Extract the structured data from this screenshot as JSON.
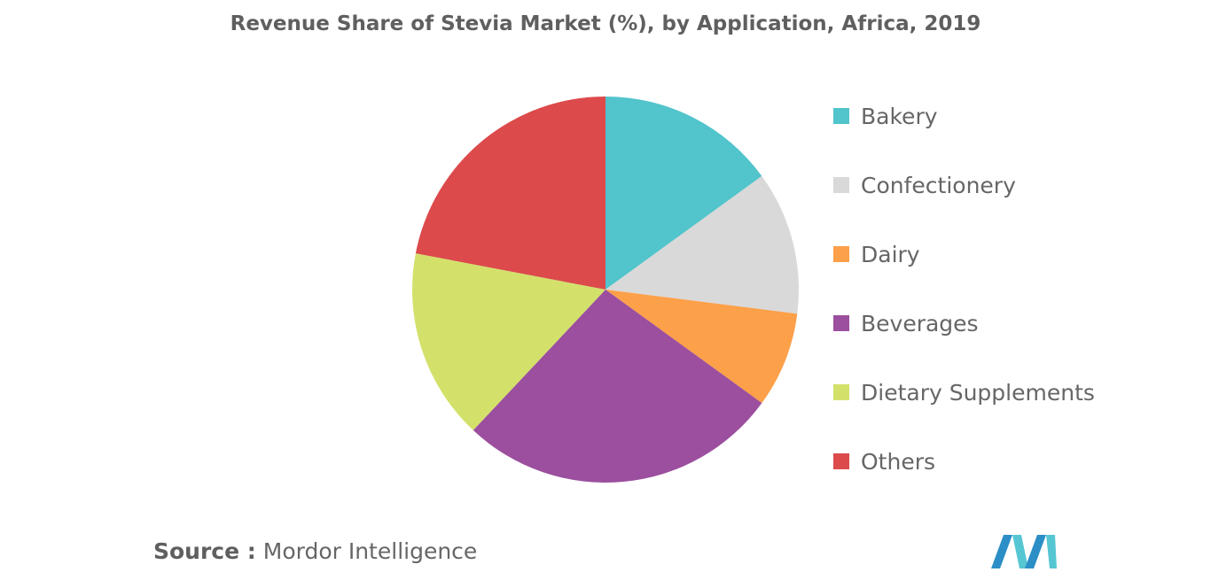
{
  "chart_data": {
    "type": "pie",
    "title": "Revenue Share of Stevia Market (%), by Application, Africa, 2019",
    "categories": [
      "Bakery",
      "Confectionery",
      "Dairy",
      "Beverages",
      "Dietary Supplements",
      "Others"
    ],
    "values": [
      15,
      12,
      8,
      27,
      16,
      22
    ],
    "colors": [
      "#52c4cb",
      "#d9d9d9",
      "#fca04a",
      "#9b4f9e",
      "#d3e16b",
      "#dc4a4c"
    ],
    "legend": "right",
    "start_angle_deg": 0,
    "direction": "clockwise"
  },
  "source": {
    "label": "Source :",
    "text": "Mordor Intelligence"
  },
  "logo": {
    "icon": "mordor-intelligence-logo-icon",
    "colors": [
      "#2b8ec6",
      "#56c6d3"
    ]
  }
}
